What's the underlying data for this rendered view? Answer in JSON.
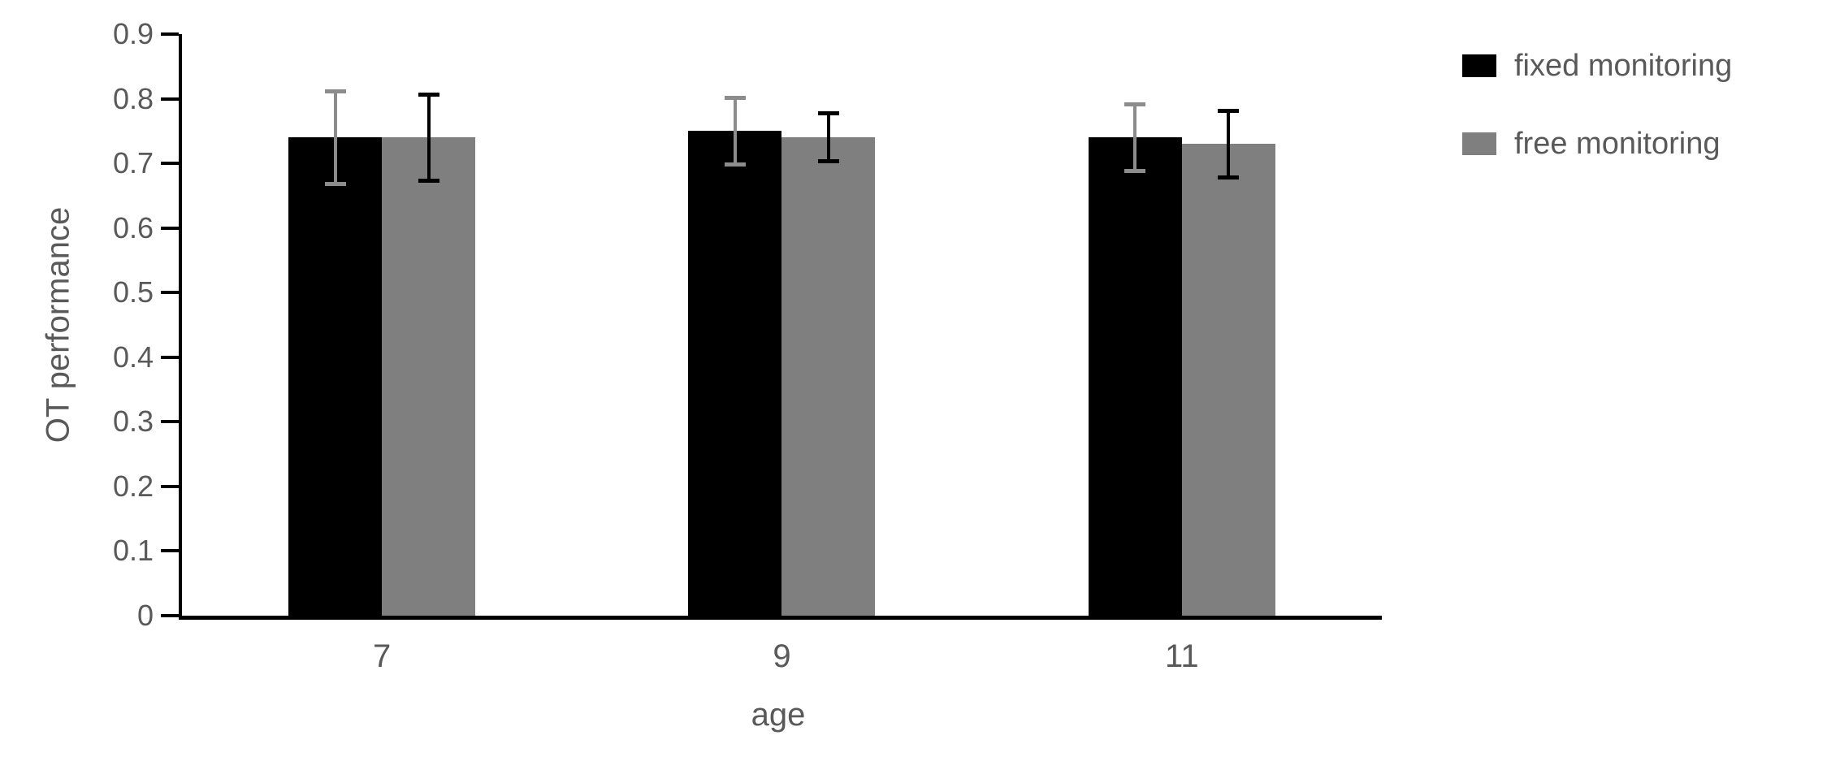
{
  "chart_data": {
    "type": "bar",
    "title": "",
    "xlabel": "age",
    "ylabel": "OT performance",
    "categories": [
      "7",
      "9",
      "11"
    ],
    "series": [
      {
        "name": "fixed monitoring",
        "color": "#000000",
        "error_bar_color": "#8c8c8c",
        "values": [
          0.74,
          0.75,
          0.74
        ],
        "errors": [
          0.075,
          0.055,
          0.055
        ]
      },
      {
        "name": "free monitoring",
        "color": "#7f7f7f",
        "error_bar_color": "#000000",
        "values": [
          0.74,
          0.74,
          0.73
        ],
        "errors": [
          0.07,
          0.04,
          0.055
        ]
      }
    ],
    "ylim": [
      0,
      0.9
    ],
    "ytick_step": 0.1,
    "yticks": [
      "0",
      "0.1",
      "0.2",
      "0.3",
      "0.4",
      "0.5",
      "0.6",
      "0.7",
      "0.8",
      "0.9"
    ],
    "grid": false,
    "legend_position": "right-top",
    "axis_text_color": "#595959",
    "axis_line_color": "#000000",
    "background_color": "#ffffff"
  }
}
